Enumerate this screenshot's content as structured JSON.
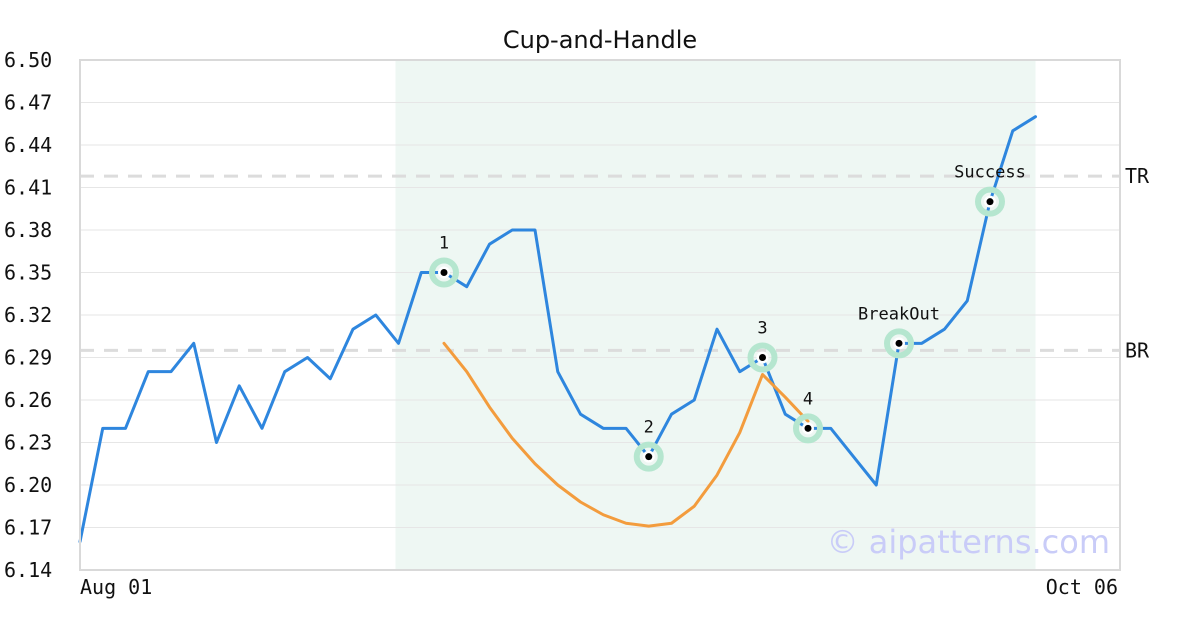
{
  "chart_data": {
    "type": "line",
    "title": "Cup-and-Handle",
    "ylim": [
      6.14,
      6.5
    ],
    "yticks": [
      "6.14",
      "6.17",
      "6.20",
      "6.23",
      "6.26",
      "6.29",
      "6.32",
      "6.35",
      "6.38",
      "6.41",
      "6.44",
      "6.47",
      "6.50"
    ],
    "x_start_label": "Aug 01",
    "x_end_label": "Oct 06",
    "grid": true,
    "series": [
      {
        "color": "#2e86de",
        "values": [
          6.16,
          6.24,
          6.24,
          6.28,
          6.28,
          6.3,
          6.23,
          6.27,
          6.24,
          6.28,
          6.29,
          6.275,
          6.31,
          6.32,
          6.3,
          6.35,
          6.35,
          6.34,
          6.37,
          6.38,
          6.38,
          6.28,
          6.25,
          6.24,
          6.24,
          6.22,
          6.25,
          6.26,
          6.31,
          6.28,
          6.29,
          6.25,
          6.24,
          6.24,
          6.22,
          6.2,
          6.3,
          6.3,
          6.31,
          6.33,
          6.4,
          6.45,
          6.46
        ]
      },
      {
        "color": "#f39c3d",
        "start_index": 16,
        "values": [
          6.3,
          6.28,
          6.255,
          6.233,
          6.215,
          6.2,
          6.188,
          6.179,
          6.173,
          6.171,
          6.173,
          6.185,
          6.207,
          6.237,
          6.278,
          6.262,
          6.245
        ]
      }
    ],
    "highlight_range": {
      "from_index": 14,
      "to_index": 42,
      "color": "#eef7f3"
    },
    "reference_lines": [
      {
        "label": "TR",
        "value": 6.418
      },
      {
        "label": "BR",
        "value": 6.295
      }
    ],
    "points": [
      {
        "label": "1",
        "index": 16,
        "value": 6.35
      },
      {
        "label": "2",
        "index": 25,
        "value": 6.22
      },
      {
        "label": "3",
        "index": 30,
        "value": 6.29
      },
      {
        "label": "4",
        "index": 32,
        "value": 6.24
      },
      {
        "label": "BreakOut",
        "index": 36,
        "value": 6.3
      },
      {
        "label": "Success",
        "index": 40,
        "value": 6.4
      }
    ],
    "watermark": "© aipatterns.com"
  }
}
